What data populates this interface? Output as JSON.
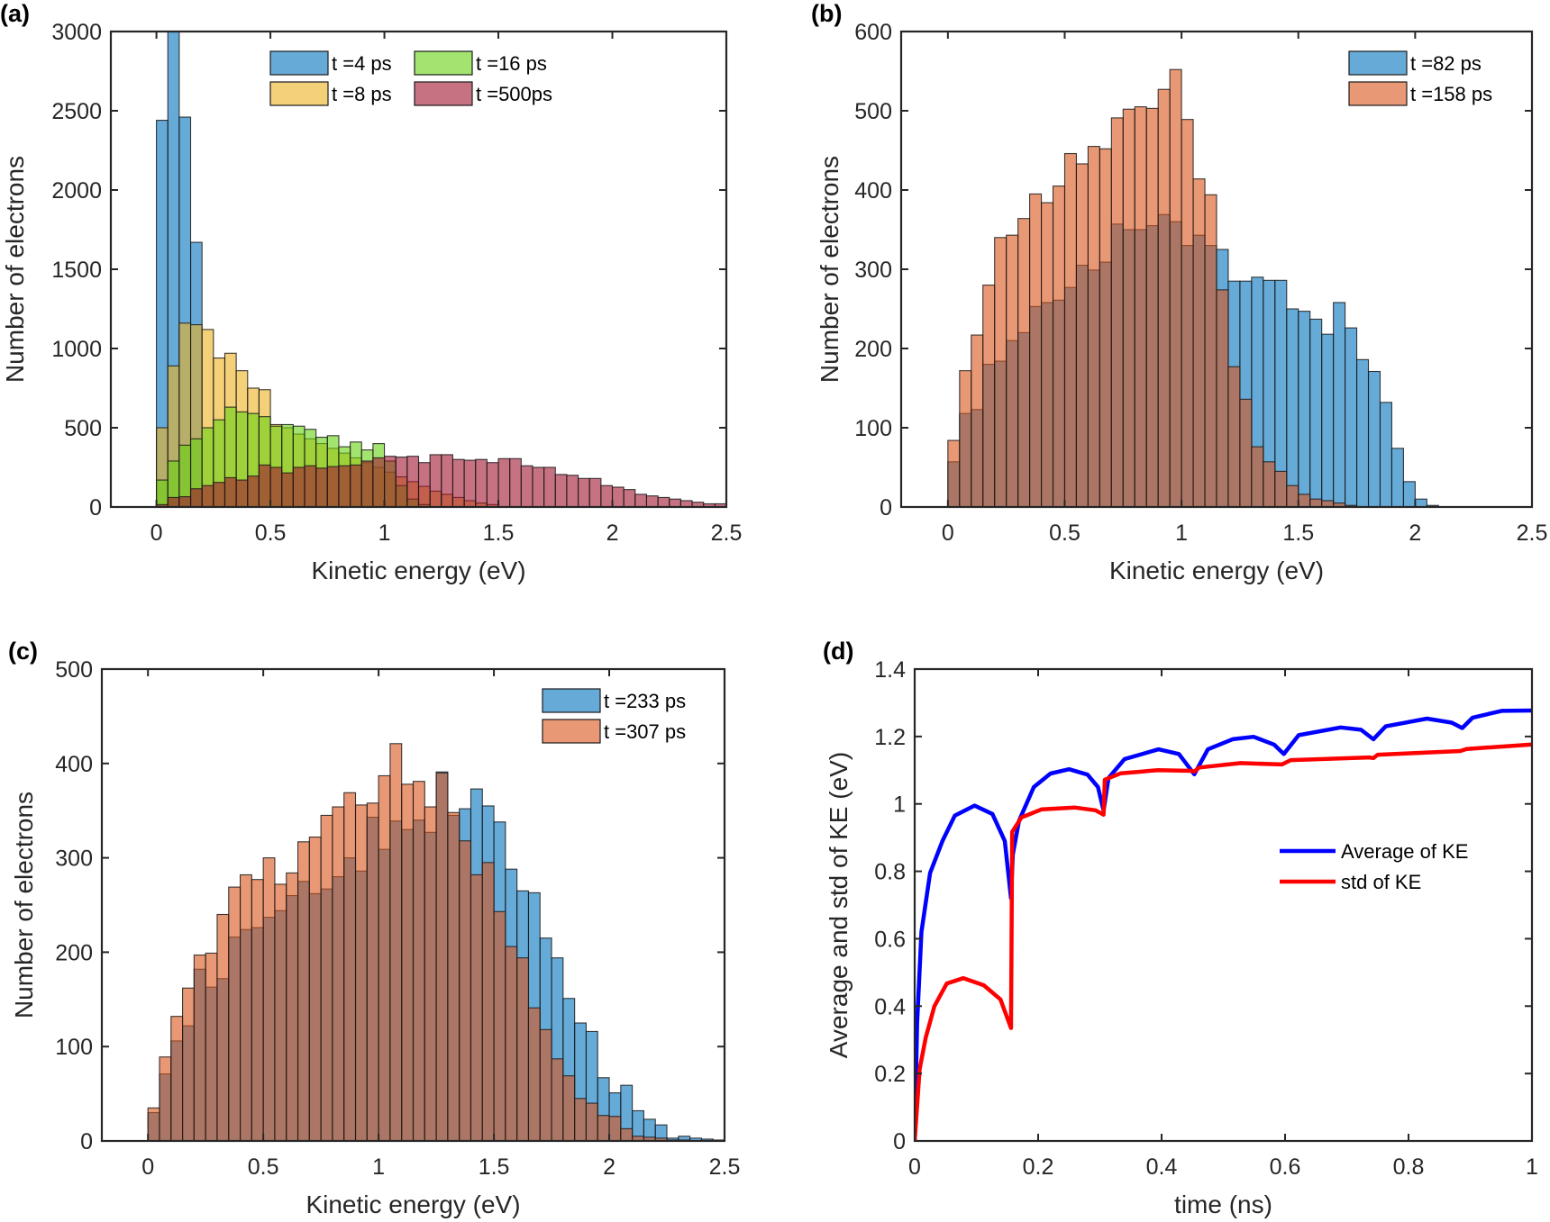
{
  "chart_data": [
    {
      "panel_label": "(a)",
      "type": "bar",
      "histogram": true,
      "bin_start": 0,
      "bin_width": 0.05,
      "xlabel": "Kinetic energy (eV)",
      "ylabel": "Number of electrons",
      "xlim": [
        -0.2,
        2.5
      ],
      "ylim": [
        0,
        3000
      ],
      "xticks": [
        "0",
        "0.5",
        "1",
        "1.5",
        "2",
        "2.5"
      ],
      "xtick_values": [
        0,
        0.5,
        1,
        1.5,
        2,
        2.5
      ],
      "yticks": [
        "0",
        "500",
        "1000",
        "1500",
        "2000",
        "2500",
        "3000"
      ],
      "ytick_values": [
        0,
        500,
        1000,
        1500,
        2000,
        2500,
        3000
      ],
      "grid": false,
      "legend_position": "top",
      "series": [
        {
          "name": "t =4 ps",
          "color": "#0072BD",
          "values": [
            2440,
            3000,
            2460,
            1670,
            0,
            0,
            0,
            0,
            0,
            0,
            0,
            0,
            0,
            0,
            0,
            0,
            0,
            0,
            0,
            0,
            0,
            0,
            0,
            0,
            0,
            0,
            0,
            0,
            0,
            0,
            0,
            0,
            0,
            0,
            0,
            0,
            0,
            0,
            0,
            0,
            0,
            0,
            0,
            0,
            0,
            0,
            0,
            0,
            0,
            0
          ]
        },
        {
          "name": "t =8 ps",
          "color": "#EDB120",
          "values": [
            500,
            890,
            1160,
            1150,
            1120,
            940,
            970,
            860,
            750,
            740,
            520,
            500,
            460,
            430,
            400,
            370,
            340,
            310,
            280,
            250,
            220,
            190,
            160,
            130,
            100,
            80,
            60,
            40,
            25,
            15,
            0,
            0,
            0,
            0,
            0,
            0,
            0,
            0,
            0,
            0,
            0,
            0,
            0,
            0,
            0,
            0,
            0,
            0,
            0,
            0
          ]
        },
        {
          "name": "t =16 ps",
          "color": "#66D211",
          "values": [
            170,
            290,
            390,
            430,
            500,
            550,
            630,
            600,
            590,
            570,
            510,
            520,
            510,
            490,
            440,
            450,
            380,
            410,
            360,
            400,
            290,
            135,
            50,
            15,
            0,
            0,
            0,
            0,
            0,
            0,
            0,
            0,
            0,
            0,
            0,
            0,
            0,
            0,
            0,
            0,
            0,
            0,
            0,
            0,
            0,
            0,
            0,
            0,
            0,
            0
          ]
        },
        {
          "name": "t =500ps",
          "color": "#A2142F",
          "values": [
            15,
            60,
            65,
            115,
            135,
            155,
            185,
            170,
            195,
            265,
            250,
            215,
            250,
            260,
            245,
            255,
            260,
            265,
            290,
            310,
            320,
            315,
            320,
            280,
            330,
            330,
            300,
            295,
            300,
            280,
            305,
            305,
            260,
            250,
            250,
            205,
            200,
            180,
            180,
            135,
            125,
            110,
            80,
            70,
            60,
            50,
            40,
            30,
            20,
            20
          ]
        }
      ]
    },
    {
      "panel_label": "(b)",
      "type": "bar",
      "histogram": true,
      "bin_start": 0,
      "bin_width": 0.05,
      "xlabel": "Kinetic energy (eV)",
      "ylabel": "Number of electrons",
      "xlim": [
        -0.2,
        2.5
      ],
      "ylim": [
        0,
        600
      ],
      "xticks": [
        "0",
        "0.5",
        "1",
        "1.5",
        "2",
        "2.5"
      ],
      "xtick_values": [
        0,
        0.5,
        1,
        1.5,
        2,
        2.5
      ],
      "yticks": [
        "0",
        "100",
        "200",
        "300",
        "400",
        "500",
        "600"
      ],
      "ytick_values": [
        0,
        100,
        200,
        300,
        400,
        500,
        600
      ],
      "grid": false,
      "legend_position": "top-right",
      "series": [
        {
          "name": "t =82 ps",
          "color": "#0072BD",
          "values": [
            57,
            118,
            123,
            180,
            184,
            210,
            220,
            253,
            258,
            261,
            277,
            305,
            299,
            309,
            357,
            350,
            350,
            355,
            369,
            360,
            330,
            343,
            330,
            325,
            285,
            285,
            290,
            286,
            286,
            250,
            247,
            237,
            218,
            258,
            226,
            186,
            171,
            132,
            74,
            32,
            10,
            2,
            0,
            0,
            0,
            0,
            0,
            0,
            0,
            0
          ]
        },
        {
          "name": "t =158 ps",
          "color": "#D95319",
          "values": [
            84,
            172,
            217,
            280,
            340,
            343,
            364,
            395,
            384,
            405,
            446,
            433,
            455,
            452,
            491,
            502,
            505,
            503,
            527,
            552,
            489,
            414,
            394,
            274,
            177,
            136,
            76,
            57,
            45,
            27,
            16,
            10,
            8,
            5,
            2,
            0,
            0,
            0,
            0,
            0,
            0,
            0,
            0,
            0,
            0,
            0,
            0,
            0,
            0,
            0
          ]
        }
      ]
    },
    {
      "panel_label": "(c)",
      "type": "bar",
      "histogram": true,
      "bin_start": 0,
      "bin_width": 0.05,
      "xlabel": "Kinetic energy (eV)",
      "ylabel": "Number of electrons",
      "xlim": [
        -0.2,
        2.5
      ],
      "ylim": [
        0,
        500
      ],
      "xticks": [
        "0",
        "0.5",
        "1",
        "1.5",
        "2",
        "2.5"
      ],
      "xtick_values": [
        0,
        0.5,
        1,
        1.5,
        2,
        2.5
      ],
      "yticks": [
        "0",
        "100",
        "200",
        "300",
        "400",
        "500"
      ],
      "ytick_values": [
        0,
        100,
        200,
        300,
        400,
        500
      ],
      "grid": false,
      "legend_position": "top-right",
      "series": [
        {
          "name": "t =233 ps",
          "color": "#0072BD",
          "values": [
            30,
            71,
            106,
            122,
            182,
            163,
            172,
            216,
            224,
            226,
            237,
            244,
            260,
            275,
            262,
            267,
            280,
            300,
            286,
            343,
            309,
            339,
            330,
            340,
            327,
            391,
            345,
            352,
            373,
            355,
            338,
            288,
            265,
            263,
            215,
            194,
            151,
            125,
            116,
            67,
            51,
            59,
            32,
            23,
            17,
            3,
            5,
            3,
            2,
            1
          ]
        },
        {
          "name": "t =307 ps",
          "color": "#D95319",
          "values": [
            35,
            89,
            132,
            162,
            197,
            199,
            240,
            269,
            282,
            277,
            300,
            272,
            284,
            317,
            322,
            345,
            354,
            369,
            356,
            358,
            387,
            421,
            378,
            381,
            354,
            390,
            348,
            318,
            282,
            295,
            243,
            206,
            194,
            141,
            118,
            87,
            69,
            45,
            40,
            27,
            26,
            13,
            5,
            4,
            3,
            1,
            1,
            0,
            0,
            0
          ]
        }
      ]
    },
    {
      "panel_label": "(d)",
      "type": "line",
      "xlabel": "time (ns)",
      "ylabel": "Average and std of KE (eV)",
      "xlim": [
        0,
        1
      ],
      "ylim": [
        0,
        1.4
      ],
      "xticks": [
        "0",
        "0.2",
        "0.4",
        "0.6",
        "0.8",
        "1"
      ],
      "xtick_values": [
        0,
        0.2,
        0.4,
        0.6,
        0.8,
        1
      ],
      "yticks": [
        "0",
        "0.2",
        "0.4",
        "0.6",
        "0.8",
        "1",
        "1.2",
        "1.4"
      ],
      "ytick_values": [
        0,
        0.2,
        0.4,
        0.6,
        0.8,
        1,
        1.2,
        1.4
      ],
      "grid": false,
      "legend_position": "right",
      "series": [
        {
          "name": "Average of KE",
          "color": "#0000FF",
          "x": [
            0,
            0.004,
            0.011,
            0.025,
            0.045,
            0.065,
            0.097,
            0.126,
            0.146,
            0.156,
            0.159,
            0.169,
            0.193,
            0.22,
            0.25,
            0.28,
            0.297,
            0.306,
            0.314,
            0.34,
            0.395,
            0.428,
            0.453,
            0.475,
            0.515,
            0.549,
            0.582,
            0.598,
            0.622,
            0.69,
            0.723,
            0.743,
            0.763,
            0.83,
            0.87,
            0.887,
            0.904,
            0.951,
            1.0
          ],
          "y": [
            0,
            0.35,
            0.62,
            0.795,
            0.89,
            0.965,
            0.995,
            0.97,
            0.89,
            0.72,
            0.85,
            0.95,
            1.05,
            1.09,
            1.103,
            1.087,
            1.05,
            0.98,
            1.077,
            1.133,
            1.162,
            1.148,
            1.088,
            1.162,
            1.192,
            1.199,
            1.176,
            1.148,
            1.204,
            1.227,
            1.22,
            1.192,
            1.23,
            1.253,
            1.241,
            1.225,
            1.256,
            1.276,
            1.277
          ]
        },
        {
          "name": "std of KE",
          "color": "#FF0000",
          "x": [
            0,
            0.008,
            0.018,
            0.032,
            0.052,
            0.079,
            0.112,
            0.139,
            0.156,
            0.158,
            0.173,
            0.206,
            0.26,
            0.293,
            0.306,
            0.308,
            0.334,
            0.394,
            0.448,
            0.453,
            0.461,
            0.528,
            0.595,
            0.609,
            0.736,
            0.743,
            0.75,
            0.884,
            0.894,
            1.0
          ],
          "y": [
            0,
            0.213,
            0.307,
            0.4,
            0.467,
            0.483,
            0.462,
            0.42,
            0.335,
            0.917,
            0.96,
            0.984,
            0.989,
            0.981,
            0.968,
            1.072,
            1.091,
            1.1,
            1.098,
            1.096,
            1.108,
            1.121,
            1.117,
            1.13,
            1.138,
            1.136,
            1.146,
            1.157,
            1.163,
            1.176
          ]
        }
      ]
    }
  ]
}
